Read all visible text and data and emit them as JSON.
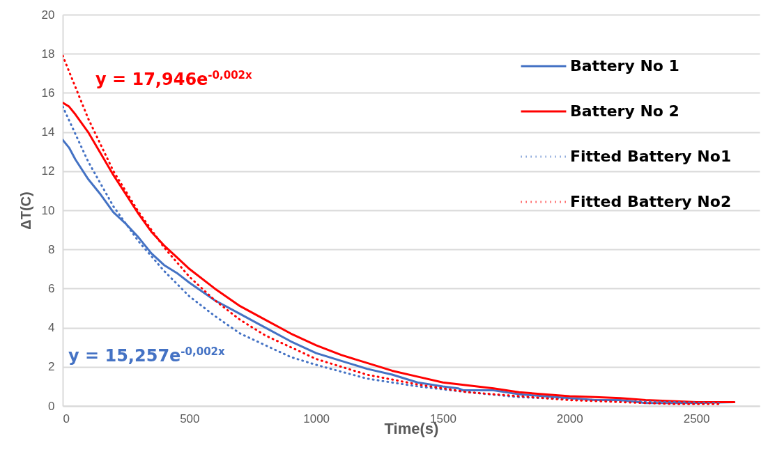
{
  "chart_data": {
    "type": "line",
    "xlabel": "Time(s)",
    "ylabel": "ΔT(C)",
    "xlim": [
      0,
      2750
    ],
    "ylim": [
      0,
      20
    ],
    "xticks": [
      0,
      500,
      1000,
      1500,
      2000,
      2500
    ],
    "yticks": [
      0,
      2,
      4,
      6,
      8,
      10,
      12,
      14,
      16,
      18,
      20
    ],
    "grid": "y",
    "legend": "top right",
    "annotations": [
      "y = 17,946e$^{-0,002x}$",
      "y = 15,257e$^{-0,002x}$"
    ],
    "series": [
      {
        "name": "Battery No 1",
        "color": "#4472c4",
        "line_style": "solid",
        "x": [
          0,
          25,
          50,
          100,
          150,
          200,
          250,
          300,
          350,
          400,
          450,
          500,
          600,
          700,
          800,
          900,
          1000,
          1100,
          1200,
          1300,
          1400,
          1500,
          1560,
          1580,
          1600,
          1700,
          1800,
          1900,
          2000,
          2100,
          2200,
          2300,
          2400,
          2500,
          2650
        ],
        "values": [
          13.6,
          13.2,
          12.6,
          11.6,
          10.8,
          9.9,
          9.3,
          8.6,
          7.8,
          7.2,
          6.8,
          6.3,
          5.4,
          4.7,
          4.0,
          3.3,
          2.7,
          2.3,
          1.9,
          1.6,
          1.2,
          1.0,
          0.9,
          0.8,
          0.8,
          0.8,
          0.6,
          0.5,
          0.4,
          0.3,
          0.3,
          0.15,
          0.15,
          0.15,
          0.2
        ]
      },
      {
        "name": "Battery No 2",
        "color": "#ff0000",
        "line_style": "solid",
        "x": [
          0,
          25,
          50,
          100,
          150,
          200,
          250,
          300,
          350,
          400,
          450,
          500,
          600,
          700,
          800,
          900,
          1000,
          1100,
          1200,
          1300,
          1400,
          1500,
          1600,
          1700,
          1800,
          1900,
          2000,
          2100,
          2200,
          2300,
          2400,
          2500,
          2650
        ],
        "values": [
          15.5,
          15.3,
          14.9,
          14.0,
          12.9,
          11.8,
          10.8,
          9.8,
          8.9,
          8.2,
          7.6,
          7.0,
          6.0,
          5.1,
          4.4,
          3.7,
          3.1,
          2.6,
          2.2,
          1.8,
          1.5,
          1.2,
          1.05,
          0.9,
          0.7,
          0.6,
          0.5,
          0.45,
          0.4,
          0.3,
          0.25,
          0.2,
          0.2
        ]
      },
      {
        "name": "Fitted Battery No1",
        "color": "#4472c4",
        "line_style": "dotted",
        "x": [
          0,
          100,
          200,
          300,
          400,
          500,
          600,
          700,
          800,
          900,
          1000,
          1200,
          1400,
          1600,
          1800,
          2000,
          2200,
          2400,
          2600
        ],
        "values": [
          15.3,
          12.5,
          10.2,
          8.4,
          6.9,
          5.6,
          4.6,
          3.7,
          3.1,
          2.5,
          2.1,
          1.4,
          1.0,
          0.7,
          0.45,
          0.35,
          0.25,
          0.2,
          0.15
        ]
      },
      {
        "name": "Fitted Battery No2",
        "color": "#ff0000",
        "line_style": "dotted",
        "x": [
          0,
          100,
          200,
          300,
          400,
          500,
          600,
          700,
          800,
          900,
          1000,
          1200,
          1400,
          1600,
          1800,
          2000,
          2200,
          2400,
          2600
        ],
        "values": [
          17.9,
          14.7,
          12.0,
          9.9,
          8.1,
          6.6,
          5.4,
          4.4,
          3.6,
          3.0,
          2.4,
          1.6,
          1.1,
          0.7,
          0.5,
          0.3,
          0.2,
          0.1,
          0.1
        ]
      }
    ]
  }
}
